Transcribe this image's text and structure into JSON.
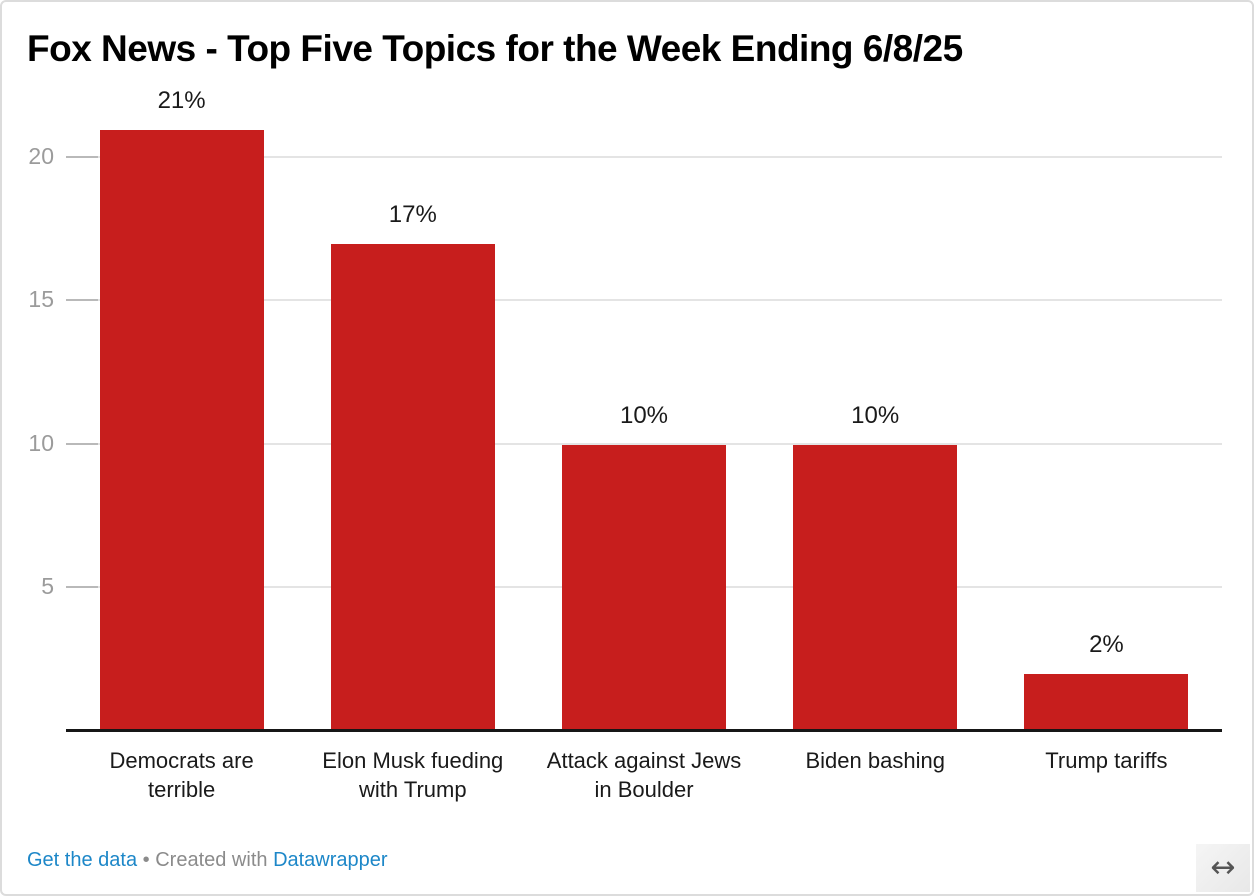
{
  "chart_data": {
    "type": "bar",
    "title": "Fox News - Top Five Topics for the Week Ending 6/8/25",
    "categories": [
      "Democrats are terrible",
      "Elon Musk fueding with Trump",
      "Attack against Jews in Boulder",
      "Biden bashing",
      "Trump tariffs"
    ],
    "values": [
      21,
      17,
      10,
      10,
      2
    ],
    "value_labels": [
      "21%",
      "17%",
      "10%",
      "10%",
      "2%"
    ],
    "y_ticks": [
      5,
      10,
      15,
      20
    ],
    "ylim": [
      0,
      22
    ],
    "xlabel": "",
    "ylabel": "",
    "grid": true,
    "legend": "none",
    "bar_color": "#c71e1d",
    "gridline_color": "#e4e4e4",
    "axis_line_color": "#161616",
    "tick_label_color": "#9b9b9b"
  },
  "footer": {
    "get_data_label": "Get the data",
    "separator": "•",
    "created_with_label": "Created with",
    "datawrapper_label": "Datawrapper",
    "link_color": "#1d87c8"
  },
  "icons": {
    "resize_arrow": "↔"
  }
}
